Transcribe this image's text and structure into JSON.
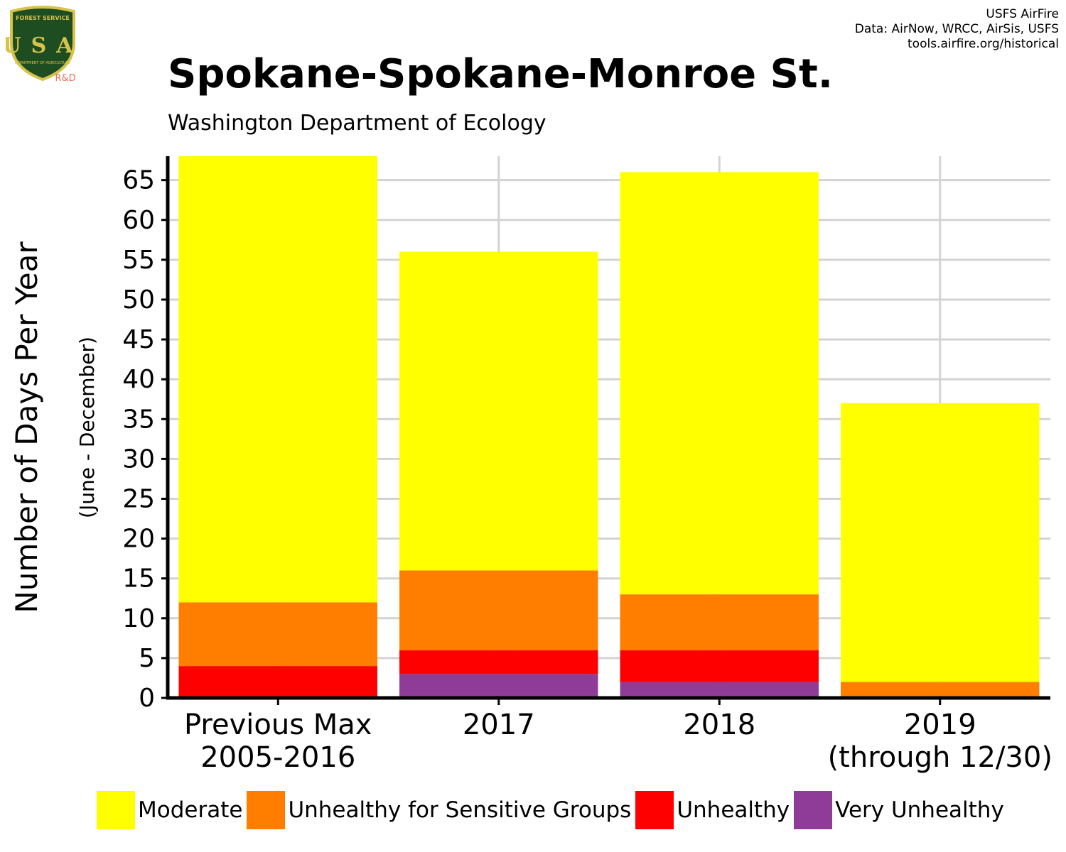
{
  "header": {
    "title": "Spokane-Spokane-Monroe St.",
    "subtitle": "Washington Department of Ecology",
    "credits": [
      "USFS AirFire",
      "Data: AirNow, WRCC, AirSis, USFS",
      "tools.airfire.org/historical"
    ]
  },
  "logo": {
    "icon": "usfs-shield-logo",
    "top_text": "FOREST SERVICE",
    "letters": "USA",
    "bottom_text": "DEPARTMENT OF AGRICULTURE",
    "badge": "R&D",
    "colors": {
      "shield": "#1f4d22",
      "gold": "#d6c34a",
      "badge": "#e8735a"
    }
  },
  "chart_data": {
    "type": "bar",
    "stacked": true,
    "title": "Spokane-Spokane-Monroe St.",
    "subtitle": "Washington Department of Ecology",
    "ylabel": "Number of Days Per Year",
    "ylabel_secondary": "(June - December)",
    "xlabel": "",
    "ylim": [
      0,
      68
    ],
    "yticks": [
      "0",
      "5",
      "10",
      "15",
      "20",
      "25",
      "30",
      "35",
      "40",
      "45",
      "50",
      "55",
      "60",
      "65"
    ],
    "grid": true,
    "legend_position": "bottom",
    "categories": [
      {
        "line1": "Previous Max",
        "line2": "2005-2016"
      },
      {
        "line1": "2017",
        "line2": ""
      },
      {
        "line1": "2018",
        "line2": ""
      },
      {
        "line1": "2019",
        "line2": "(through 12/30)"
      }
    ],
    "series": [
      {
        "name": "Very Unhealthy",
        "color": "#8e3c97",
        "values": [
          0,
          3,
          2,
          0
        ]
      },
      {
        "name": "Unhealthy",
        "color": "#ff0000",
        "values": [
          4,
          3,
          4,
          0
        ]
      },
      {
        "name": "Unhealthy for Sensitive Groups",
        "color": "#ff7e00",
        "values": [
          8,
          10,
          7,
          2
        ]
      },
      {
        "name": "Moderate",
        "color": "#ffff00",
        "values": [
          56,
          40,
          53,
          35
        ]
      }
    ],
    "legend_order": [
      "Moderate",
      "Unhealthy for Sensitive Groups",
      "Unhealthy",
      "Very Unhealthy"
    ]
  }
}
